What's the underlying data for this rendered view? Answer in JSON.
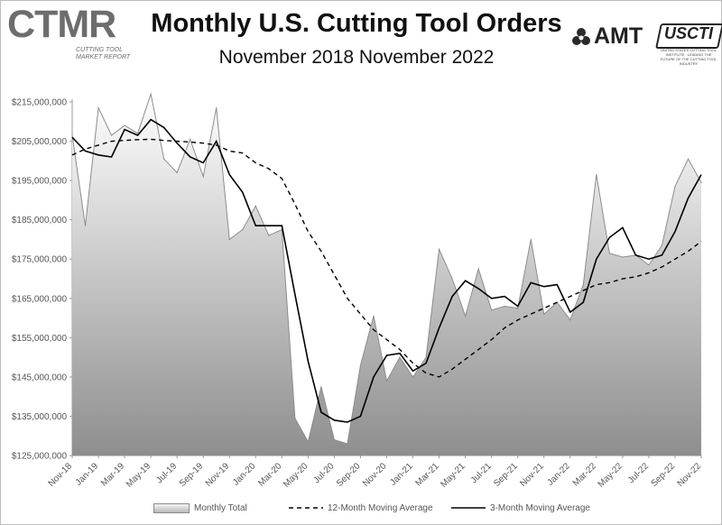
{
  "header": {
    "logo_left": "CTMR",
    "logo_left_sub": "CUTTING TOOL MARKET REPORT",
    "title": "Monthly U.S. Cutting Tool Orders",
    "subtitle": "November 2018 November 2022",
    "logo_amt": "AMT",
    "logo_uscti": "USCTI",
    "logo_uscti_tag": "UNITED STATES CUTTING TOOL INSTITUTE · LEADING THE FUTURE OF THE CUTTING TOOL INDUSTRY"
  },
  "colors": {
    "area_top": "#ffffff",
    "area_bottom": "#8e8e8e",
    "area_stroke": "#8c8c8c",
    "avg_line": "#000000"
  },
  "icons": {
    "amt_logo_mark": "amt-pinwheel-icon"
  },
  "chart_data": {
    "type": "area",
    "title": "Monthly U.S. Cutting Tool Orders",
    "subtitle": "November 2018 November 2022",
    "xlabel": "",
    "ylabel": "",
    "ylim": [
      125000000,
      215000000
    ],
    "y_ticks": [
      125000000,
      135000000,
      145000000,
      155000000,
      165000000,
      175000000,
      185000000,
      195000000,
      205000000,
      215000000
    ],
    "y_tick_labels": [
      "$125,000,000",
      "$135,000,000",
      "$145,000,000",
      "$155,000,000",
      "$165,000,000",
      "$175,000,000",
      "$185,000,000",
      "$195,000,000",
      "$205,000,000",
      "$215,000,000"
    ],
    "x": [
      "Nov-18",
      "Dec-18",
      "Jan-19",
      "Feb-19",
      "Mar-19",
      "Apr-19",
      "May-19",
      "Jun-19",
      "Jul-19",
      "Aug-19",
      "Sep-19",
      "Oct-19",
      "Nov-19",
      "Dec-19",
      "Jan-20",
      "Feb-20",
      "Mar-20",
      "Apr-20",
      "May-20",
      "Jun-20",
      "Jul-20",
      "Aug-20",
      "Sep-20",
      "Oct-20",
      "Nov-20",
      "Dec-20",
      "Jan-21",
      "Feb-21",
      "Mar-21",
      "Apr-21",
      "May-21",
      "Jun-21",
      "Jul-21",
      "Aug-21",
      "Sep-21",
      "Oct-21",
      "Nov-21",
      "Dec-21",
      "Jan-22",
      "Feb-22",
      "Mar-22",
      "Apr-22",
      "May-22",
      "Jun-22",
      "Jul-22",
      "Aug-22",
      "Sep-22",
      "Oct-22",
      "Nov-22"
    ],
    "x_tick_labels": [
      "Nov-18",
      "Jan-19",
      "Mar-19",
      "May-19",
      "Jul-19",
      "Sep-19",
      "Nov-19",
      "Jan-20",
      "Mar-20",
      "May-20",
      "Jul-20",
      "Sep-20",
      "Nov-20",
      "Jan-21",
      "Mar-21",
      "May-21",
      "Jul-21",
      "Sep-21",
      "Nov-21",
      "Jan-22",
      "Mar-22",
      "May-22",
      "Jul-22",
      "Sep-22",
      "Nov-22"
    ],
    "grid": false,
    "legend_position": "bottom",
    "series": [
      {
        "name": "Monthly Total",
        "type": "area",
        "values": [
          206500000,
          183500000,
          213500000,
          206500000,
          209000000,
          207000000,
          217000000,
          200500000,
          197000000,
          205500000,
          196000000,
          213500000,
          180000000,
          182500000,
          188500000,
          181000000,
          182500000,
          134500000,
          128500000,
          142500000,
          129000000,
          128000000,
          148000000,
          160500000,
          144000000,
          150000000,
          145000000,
          150000000,
          177500000,
          170000000,
          160500000,
          172500000,
          162000000,
          163000000,
          162500000,
          180000000,
          161000000,
          164000000,
          159500000,
          168500000,
          196500000,
          176500000,
          175500000,
          176000000,
          173500000,
          178500000,
          193500000,
          200500000,
          194500000
        ]
      },
      {
        "name": "12-Month Moving Average",
        "type": "line",
        "dash": true,
        "values": [
          201500000,
          203000000,
          204000000,
          205000000,
          205200000,
          205400000,
          205500000,
          205200000,
          205000000,
          204800000,
          204500000,
          204000000,
          202500000,
          202000000,
          199500000,
          198000000,
          195500000,
          189000000,
          182000000,
          177000000,
          171000000,
          165000000,
          161000000,
          157000000,
          154500000,
          152000000,
          148500000,
          146000000,
          145000000,
          147000000,
          149500000,
          152000000,
          154500000,
          157500000,
          159500000,
          161000000,
          162500000,
          164000000,
          165500000,
          167000000,
          168500000,
          169000000,
          170000000,
          170500000,
          171500000,
          173000000,
          175000000,
          177000000,
          179500000
        ]
      },
      {
        "name": "3-Month Moving Average",
        "type": "line",
        "dash": false,
        "values": [
          206000000,
          202500000,
          201500000,
          201000000,
          208000000,
          206500000,
          210500000,
          208500000,
          204500000,
          201000000,
          199500000,
          205000000,
          196500000,
          192000000,
          183500000,
          183500000,
          183500000,
          166000000,
          149000000,
          136000000,
          134000000,
          133500000,
          135000000,
          145000000,
          150500000,
          151000000,
          146500000,
          148500000,
          157500000,
          165500000,
          169500000,
          167500000,
          165000000,
          165500000,
          163000000,
          169000000,
          168000000,
          168500000,
          161500000,
          164000000,
          175000000,
          180500000,
          183000000,
          176000000,
          175000000,
          176000000,
          182000000,
          190500000,
          196500000
        ]
      }
    ]
  }
}
